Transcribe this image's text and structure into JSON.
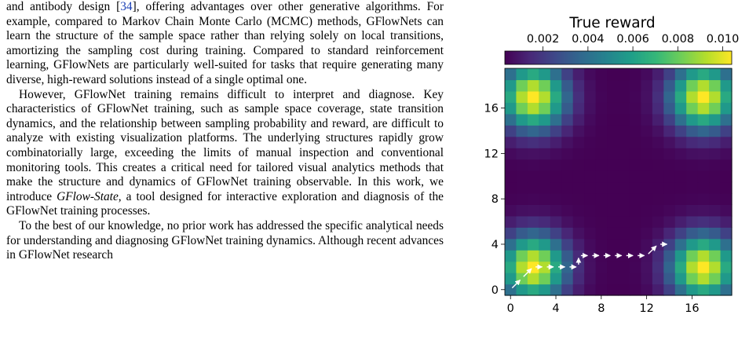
{
  "text": {
    "p1_a": "and antibody design [",
    "p1_ref": "34",
    "p1_b": "], offering advantages over other generative algorithms. For example, compared to Markov Chain Monte Carlo (MCMC) methods, GFlowNets can learn the structure of the sample space rather than relying solely on local transitions, amortizing the sampling cost during training. Compared to standard reinforcement learning, GFlowNets are particularly well-suited for tasks that require generating many diverse, high-reward solutions instead of a single optimal one.",
    "p2_a": "However, GFlowNet training remains difficult to interpret and diagnose. Key characteristics of GFlowNet training, such as sample space coverage, state transition dynamics, and the relationship between sampling probability and reward, are difficult to analyze with existing visualization platforms. The underlying structures rapidly grow combinatorially large, exceeding the limits of manual inspection and conventional monitoring tools. This creates a critical need for tailored visual analytics methods that make the structure and dynamics of GFlowNet training observable. In this work, we introduce ",
    "p2_em": "GFlow-State",
    "p2_b": ", a tool designed for interactive exploration and diagnosis of the GFlowNet training processes.",
    "p3": "To the best of our knowledge, no prior work has addressed the specific analytical needs for understanding and diagnosing GFlowNet training dynamics. Although recent advances in GFlowNet research"
  },
  "figure": {
    "colorbar_title": "True reward",
    "colorbar_ticks": [
      0.002,
      0.004,
      0.006,
      0.008,
      0.01
    ],
    "colorbar_tick_labels": [
      "0.002",
      "0.004",
      "0.006",
      "0.008",
      "0.010"
    ],
    "colorbar_range": [
      0.0003,
      0.0104
    ],
    "colormap": [
      "#440154",
      "#482878",
      "#3e4989",
      "#31688e",
      "#26828e",
      "#1f9e89",
      "#35b779",
      "#6ece58",
      "#b5de2b",
      "#fde725"
    ],
    "x_ticks": [
      0,
      4,
      8,
      12,
      16
    ],
    "y_ticks": [
      0,
      4,
      8,
      12,
      16
    ],
    "x_tick_labels": [
      "0",
      "4",
      "8",
      "12",
      "16"
    ],
    "y_tick_labels": [
      "0",
      "4",
      "8",
      "12",
      "16"
    ],
    "trajectory_color": "#ffffff"
  },
  "chart_data": {
    "type": "heatmap",
    "title": "",
    "xlabel": "",
    "ylabel": "",
    "grid_size": [
      20,
      20
    ],
    "xlim": [
      -0.5,
      19.5
    ],
    "ylim": [
      -0.5,
      19.5
    ],
    "colorbar_label": "True reward",
    "modes": [
      [
        2,
        2
      ],
      [
        2,
        17
      ],
      [
        17,
        2
      ],
      [
        17,
        17
      ]
    ],
    "peak_value": 0.0104,
    "background_value": 0.0003,
    "trajectory": [
      [
        0,
        0
      ],
      [
        1,
        1
      ],
      [
        2,
        2
      ],
      [
        3,
        2
      ],
      [
        4,
        2
      ],
      [
        5,
        2
      ],
      [
        6,
        2
      ],
      [
        6,
        3
      ],
      [
        7,
        3
      ],
      [
        8,
        3
      ],
      [
        9,
        3
      ],
      [
        10,
        3
      ],
      [
        11,
        3
      ],
      [
        12,
        3
      ],
      [
        13,
        4
      ],
      [
        14,
        4
      ]
    ]
  }
}
